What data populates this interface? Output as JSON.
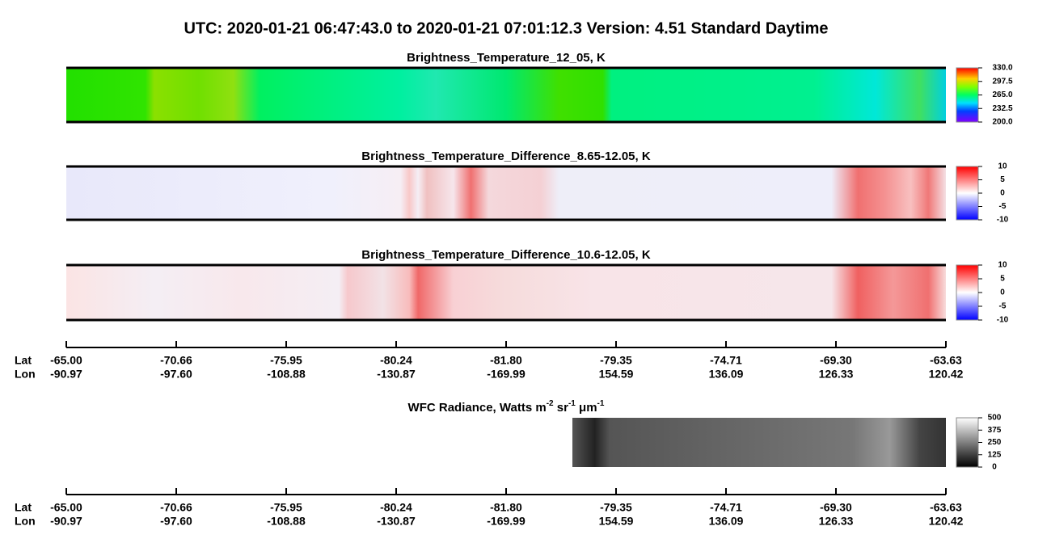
{
  "title": "UTC:  2020-01-21   06:47:43.0  to  2020-01-21   07:01:12.3    Version: 4.51  Standard Daytime",
  "panels": [
    {
      "title": "Brightness_Temperature_12_05, K",
      "colorbar_ticks": [
        "330.0",
        "297.5",
        "265.0",
        "232.5",
        "200.0"
      ]
    },
    {
      "title": "Brightness_Temperature_Difference_8.65-12.05, K",
      "colorbar_ticks": [
        "10",
        "5",
        "0",
        "-5",
        "-10"
      ]
    },
    {
      "title": "Brightness_Temperature_Difference_10.6-12.05, K",
      "colorbar_ticks": [
        "10",
        "5",
        "0",
        "-5",
        "-10"
      ]
    }
  ],
  "axis": {
    "lat_label": "Lat",
    "lon_label": "Lon",
    "lat": [
      "-65.00",
      "-70.66",
      "-75.95",
      "-80.24",
      "-81.80",
      "-79.35",
      "-74.71",
      "-69.30",
      "-63.63"
    ],
    "lon": [
      "-90.97",
      "-97.60",
      "-108.88",
      "-130.87",
      "-169.99",
      "154.59",
      "136.09",
      "126.33",
      "120.42"
    ]
  },
  "wfc": {
    "title_parts": [
      "WFC Radiance, Watts m",
      "-2",
      " sr",
      "-1",
      " μm",
      "-1"
    ],
    "colorbar_ticks": [
      "500",
      "375",
      "250",
      "125",
      "0"
    ]
  }
}
